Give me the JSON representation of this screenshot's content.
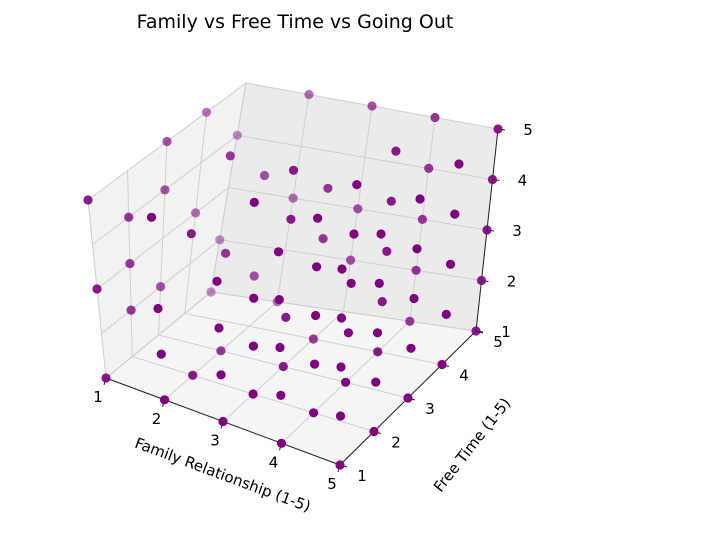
{
  "chart_data": {
    "type": "scatter",
    "title": "Family vs Free Time vs Going Out",
    "xlabel": "Family Relationship (1-5)",
    "ylabel": "Free Time (1-5)",
    "zlabel": "",
    "xticks": [
      "1",
      "2",
      "3",
      "4",
      "5"
    ],
    "yticks": [
      "1",
      "2",
      "3",
      "4",
      "5"
    ],
    "zticks": [
      "1",
      "2",
      "3",
      "4",
      "5"
    ],
    "xlim": [
      1,
      5
    ],
    "ylim": [
      1,
      5
    ],
    "zlim": [
      1,
      5
    ],
    "grid": true,
    "marker_color": "#800080",
    "points": [
      [
        1,
        1,
        1
      ],
      [
        1,
        1,
        3
      ],
      [
        1,
        1,
        5
      ],
      [
        1,
        2,
        2
      ],
      [
        1,
        2,
        3
      ],
      [
        1,
        2,
        4
      ],
      [
        1,
        3,
        2
      ],
      [
        1,
        3,
        4
      ],
      [
        1,
        3,
        5
      ],
      [
        1,
        4,
        3
      ],
      [
        1,
        4,
        5
      ],
      [
        1,
        5,
        1
      ],
      [
        1,
        5,
        2
      ],
      [
        1,
        5,
        4
      ],
      [
        2,
        1,
        1
      ],
      [
        2,
        1,
        2
      ],
      [
        2,
        1,
        3
      ],
      [
        2,
        1,
        5
      ],
      [
        2,
        2,
        1
      ],
      [
        2,
        2,
        4
      ],
      [
        2,
        3,
        1
      ],
      [
        2,
        3,
        3
      ],
      [
        2,
        3,
        5
      ],
      [
        2,
        4,
        2
      ],
      [
        2,
        4,
        4
      ],
      [
        2,
        5,
        1
      ],
      [
        2,
        5,
        3
      ],
      [
        2,
        5,
        5
      ],
      [
        3,
        1,
        1
      ],
      [
        3,
        1,
        2
      ],
      [
        3,
        1,
        3
      ],
      [
        3,
        1,
        4
      ],
      [
        3,
        2,
        1
      ],
      [
        3,
        2,
        2
      ],
      [
        3,
        2,
        3
      ],
      [
        3,
        2,
        5
      ],
      [
        3,
        3,
        1
      ],
      [
        3,
        3,
        2
      ],
      [
        3,
        3,
        4
      ],
      [
        3,
        3,
        5
      ],
      [
        3,
        4,
        1
      ],
      [
        3,
        4,
        3
      ],
      [
        3,
        4,
        4
      ],
      [
        3,
        5,
        2
      ],
      [
        3,
        5,
        3
      ],
      [
        3,
        5,
        5
      ],
      [
        4,
        1,
        1
      ],
      [
        4,
        1,
        2
      ],
      [
        4,
        1,
        3
      ],
      [
        4,
        1,
        4
      ],
      [
        4,
        1,
        5
      ],
      [
        4,
        2,
        1
      ],
      [
        4,
        2,
        2
      ],
      [
        4,
        2,
        3
      ],
      [
        4,
        2,
        4
      ],
      [
        4,
        2,
        5
      ],
      [
        4,
        3,
        1
      ],
      [
        4,
        3,
        2
      ],
      [
        4,
        3,
        3
      ],
      [
        4,
        3,
        4
      ],
      [
        4,
        3,
        5
      ],
      [
        4,
        4,
        1
      ],
      [
        4,
        4,
        2
      ],
      [
        4,
        4,
        3
      ],
      [
        4,
        4,
        4
      ],
      [
        4,
        4,
        5
      ],
      [
        4,
        5,
        1
      ],
      [
        4,
        5,
        2
      ],
      [
        4,
        5,
        3
      ],
      [
        4,
        5,
        4
      ],
      [
        4,
        5,
        5
      ],
      [
        5,
        1,
        1
      ],
      [
        5,
        1,
        2
      ],
      [
        5,
        1,
        3
      ],
      [
        5,
        1,
        4
      ],
      [
        5,
        1,
        5
      ],
      [
        5,
        2,
        1
      ],
      [
        5,
        2,
        2
      ],
      [
        5,
        2,
        3
      ],
      [
        5,
        2,
        4
      ],
      [
        5,
        2,
        5
      ],
      [
        5,
        3,
        1
      ],
      [
        5,
        3,
        2
      ],
      [
        5,
        3,
        3
      ],
      [
        5,
        3,
        4
      ],
      [
        5,
        3,
        5
      ],
      [
        5,
        4,
        1
      ],
      [
        5,
        4,
        2
      ],
      [
        5,
        4,
        3
      ],
      [
        5,
        4,
        4
      ],
      [
        5,
        4,
        5
      ],
      [
        5,
        5,
        1
      ],
      [
        5,
        5,
        2
      ],
      [
        5,
        5,
        3
      ],
      [
        5,
        5,
        4
      ],
      [
        5,
        5,
        5
      ]
    ]
  }
}
